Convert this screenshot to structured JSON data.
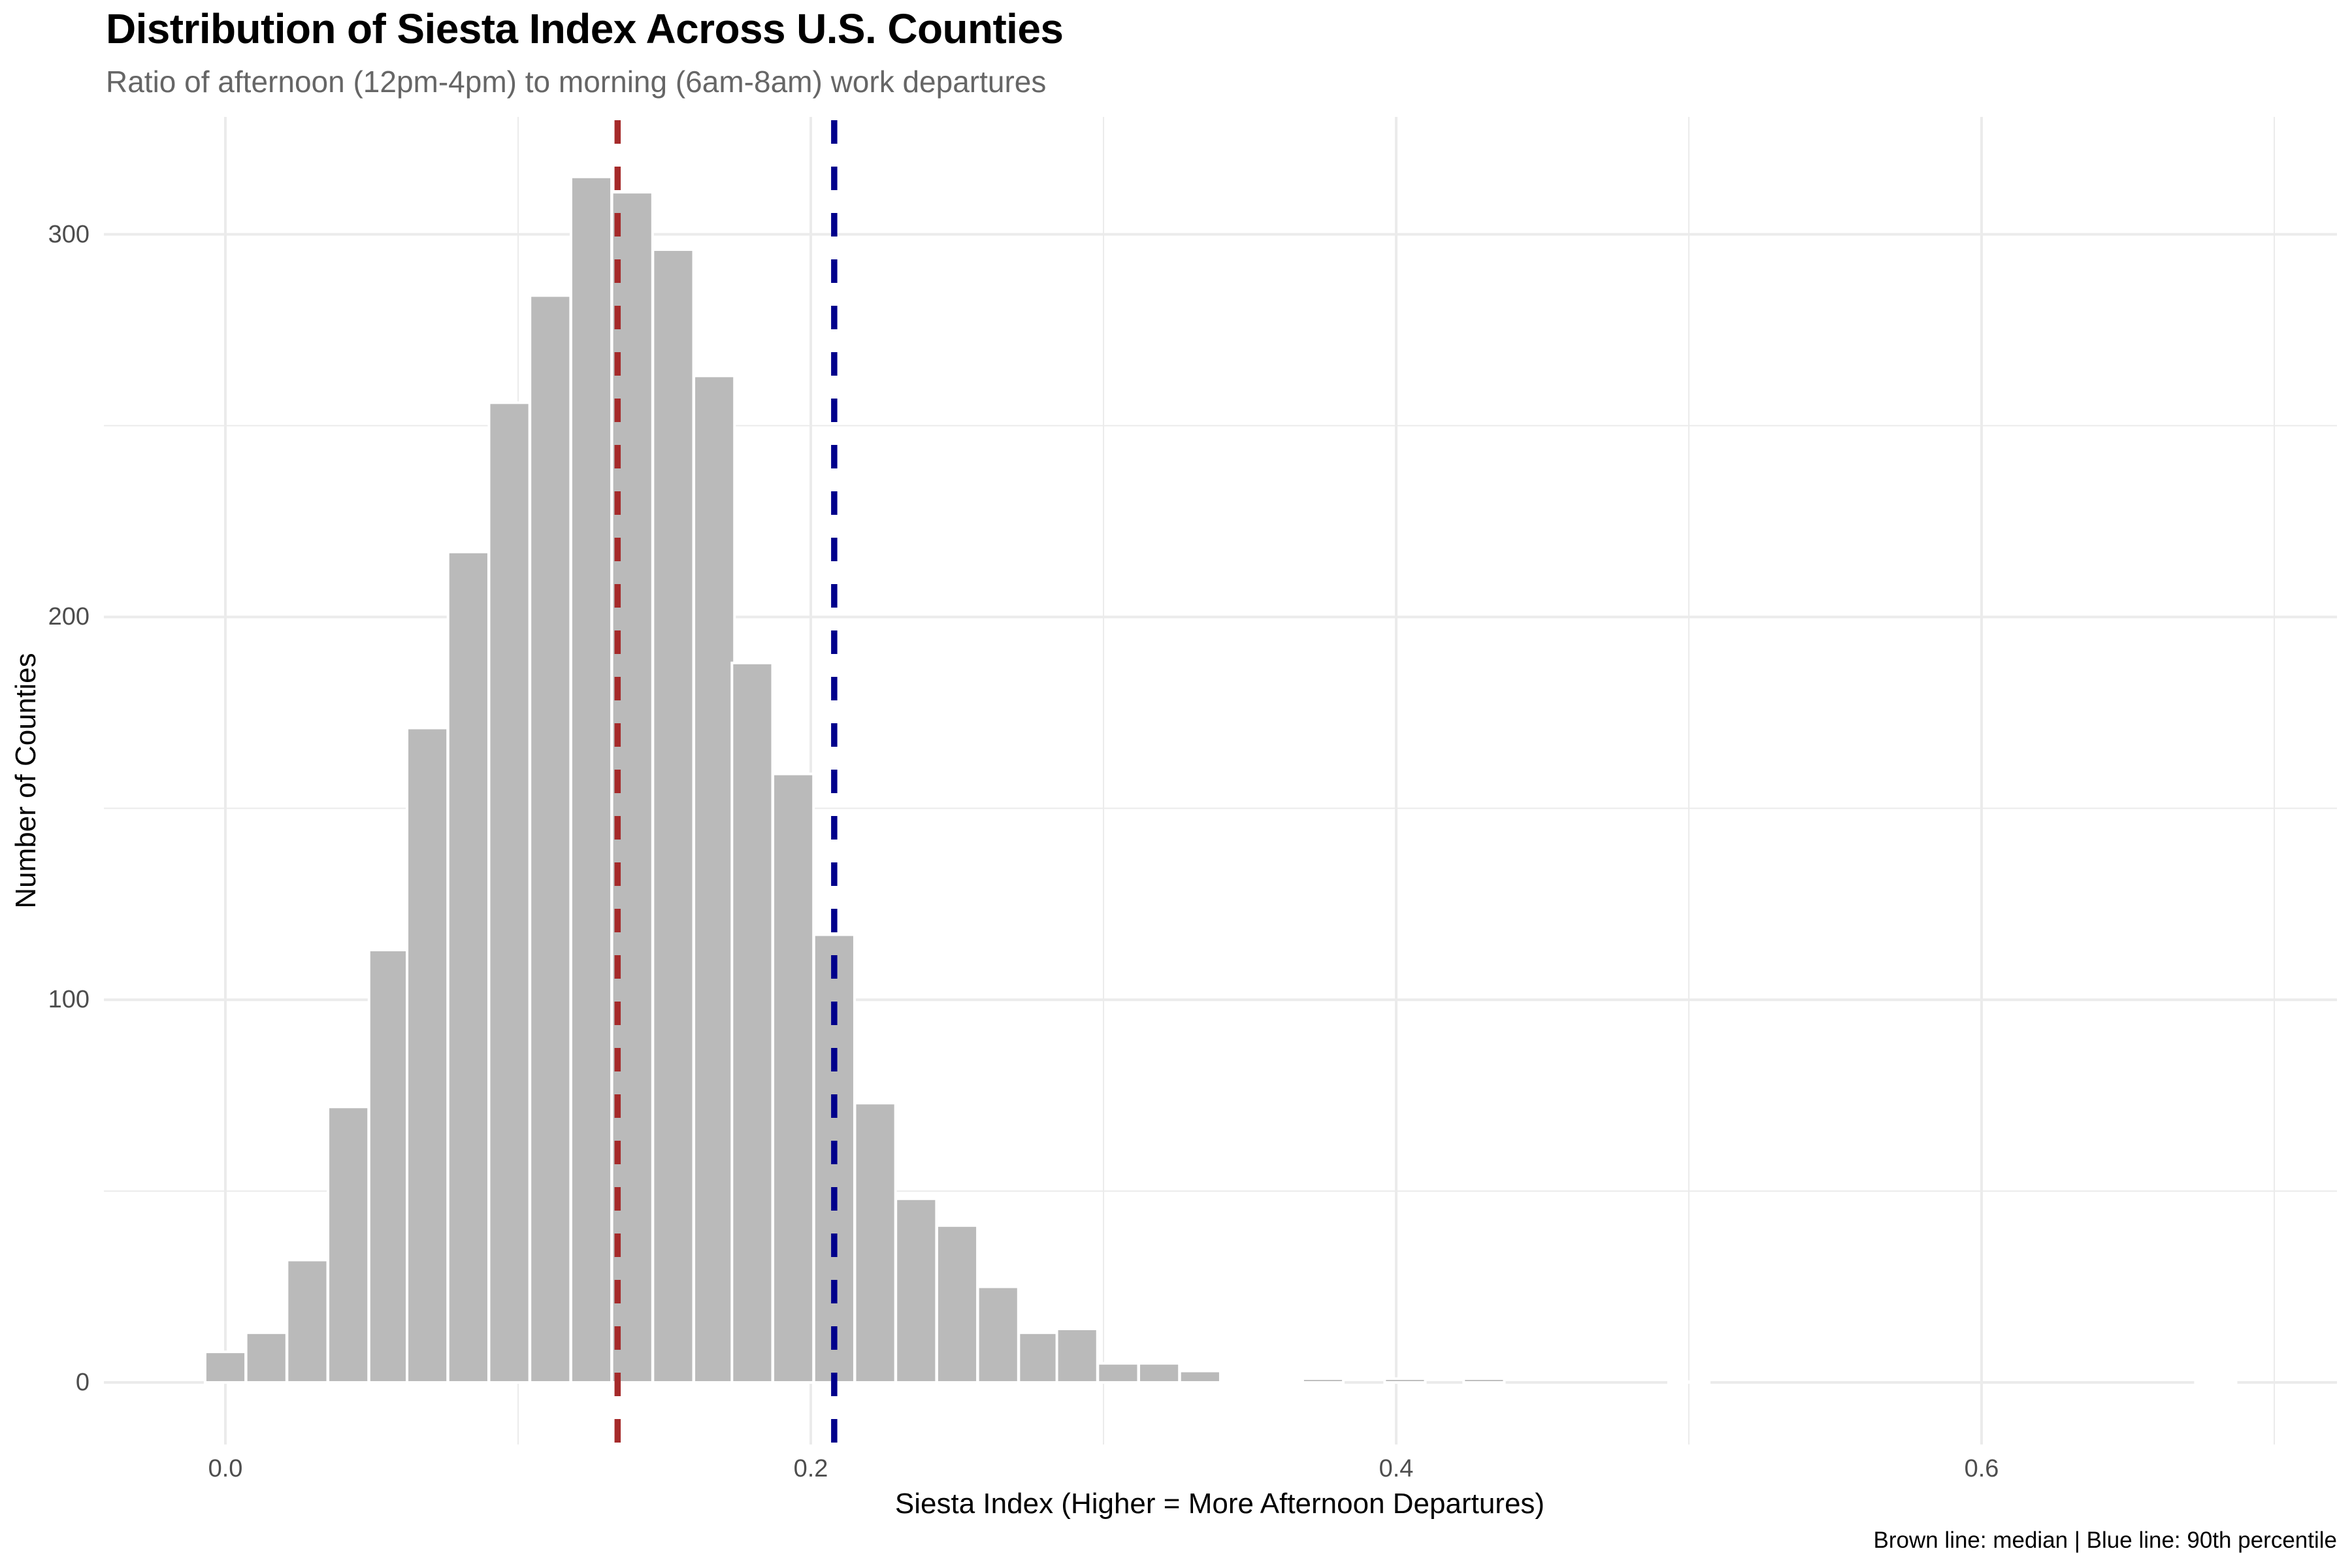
{
  "title": "Distribution of Siesta Index Across U.S. Counties",
  "subtitle": "Ratio of afternoon (12pm-4pm) to morning (6am-8am) work departures",
  "caption": "Brown line: median | Blue line: 90th percentile",
  "colors": {
    "bar_fill": "#BABABA",
    "bar_outline": "#FFFFFF",
    "median_line": "#A52A2A",
    "p90_line": "#00008B",
    "grid": "#EBEBEB",
    "tick_text": "#4D4D4D",
    "subtitle_text": "#666666"
  },
  "chart_data": {
    "type": "bar",
    "subtype": "histogram",
    "title": "Distribution of Siesta Index Across U.S. Counties",
    "subtitle": "Ratio of afternoon (12pm-4pm) to morning (6am-8am) work departures",
    "xlabel": "Siesta Index (Higher = More Afternoon Departures)",
    "ylabel": "Number of Counties",
    "caption": "Brown line: median | Blue line: 90th percentile",
    "bin_width": 0.01388,
    "x": [
      0.0,
      0.014,
      0.028,
      0.042,
      0.056,
      0.069,
      0.083,
      0.097,
      0.111,
      0.125,
      0.139,
      0.153,
      0.167,
      0.18,
      0.194,
      0.208,
      0.222,
      0.236,
      0.25,
      0.264,
      0.278,
      0.291,
      0.305,
      0.319,
      0.333,
      0.347,
      0.361,
      0.375,
      0.389,
      0.403,
      0.416,
      0.43,
      0.444,
      0.458,
      0.472,
      0.486,
      0.5,
      0.514,
      0.527,
      0.541,
      0.555,
      0.569,
      0.583,
      0.597,
      0.611,
      0.625,
      0.638,
      0.652,
      0.666,
      0.68
    ],
    "values": [
      8,
      13,
      32,
      72,
      113,
      171,
      217,
      256,
      284,
      315,
      311,
      296,
      263,
      188,
      159,
      117,
      73,
      48,
      41,
      25,
      13,
      14,
      5,
      5,
      3,
      0.2,
      0.2,
      1,
      0,
      1,
      0,
      1,
      0,
      0,
      0,
      0,
      0.2,
      0,
      0,
      0,
      0,
      0,
      0,
      0,
      0,
      0,
      0,
      0,
      0,
      0.2
    ],
    "reference_lines": [
      {
        "name": "median",
        "x": 0.134,
        "color": "#A52A2A",
        "style": "dashed"
      },
      {
        "name": "90th percentile",
        "x": 0.208,
        "color": "#00008B",
        "style": "dashed"
      }
    ],
    "xlim": [
      -0.0415,
      0.7214
    ],
    "ylim": [
      -16,
      331
    ],
    "x_ticks": [
      0.0,
      0.2,
      0.4,
      0.6
    ],
    "x_tick_labels": [
      "0.0",
      "0.2",
      "0.4",
      "0.6"
    ],
    "x_minor_ticks": [
      0.1,
      0.3,
      0.5,
      0.7
    ],
    "y_ticks": [
      0,
      100,
      200,
      300
    ],
    "y_tick_labels": [
      "0",
      "100",
      "200",
      "300"
    ],
    "y_minor_ticks": [
      50,
      150,
      250
    ],
    "grid": true,
    "legend": "none"
  }
}
